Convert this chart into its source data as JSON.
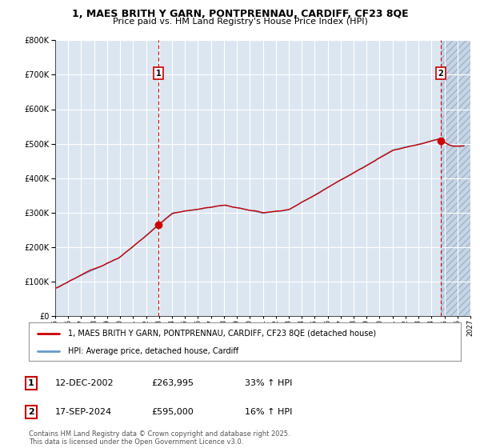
{
  "title": "1, MAES BRITH Y GARN, PONTPRENNAU, CARDIFF, CF23 8QE",
  "subtitle": "Price paid vs. HM Land Registry's House Price Index (HPI)",
  "background_color": "#ffffff",
  "plot_bg_color": "#dce6f1",
  "plot_bg_color_after": "#c8d8e8",
  "grid_color": "#ffffff",
  "red_line_color": "#cc0000",
  "blue_line_color": "#6699cc",
  "marker1_date_x": 2002.96,
  "marker2_date_x": 2024.72,
  "marker1_y": 263995,
  "marker2_y": 595000,
  "vline_color": "#cc0000",
  "legend_label_red": "1, MAES BRITH Y GARN, PONTPRENNAU, CARDIFF, CF23 8QE (detached house)",
  "legend_label_blue": "HPI: Average price, detached house, Cardiff",
  "table_rows": [
    [
      "1",
      "12-DEC-2002",
      "£263,995",
      "33% ↑ HPI"
    ],
    [
      "2",
      "17-SEP-2024",
      "£595,000",
      "16% ↑ HPI"
    ]
  ],
  "footnote": "Contains HM Land Registry data © Crown copyright and database right 2025.\nThis data is licensed under the Open Government Licence v3.0.",
  "xmin": 1995,
  "xmax": 2027,
  "ymin": 0,
  "ymax": 800000,
  "yticks": [
    0,
    100000,
    200000,
    300000,
    400000,
    500000,
    600000,
    700000,
    800000
  ]
}
